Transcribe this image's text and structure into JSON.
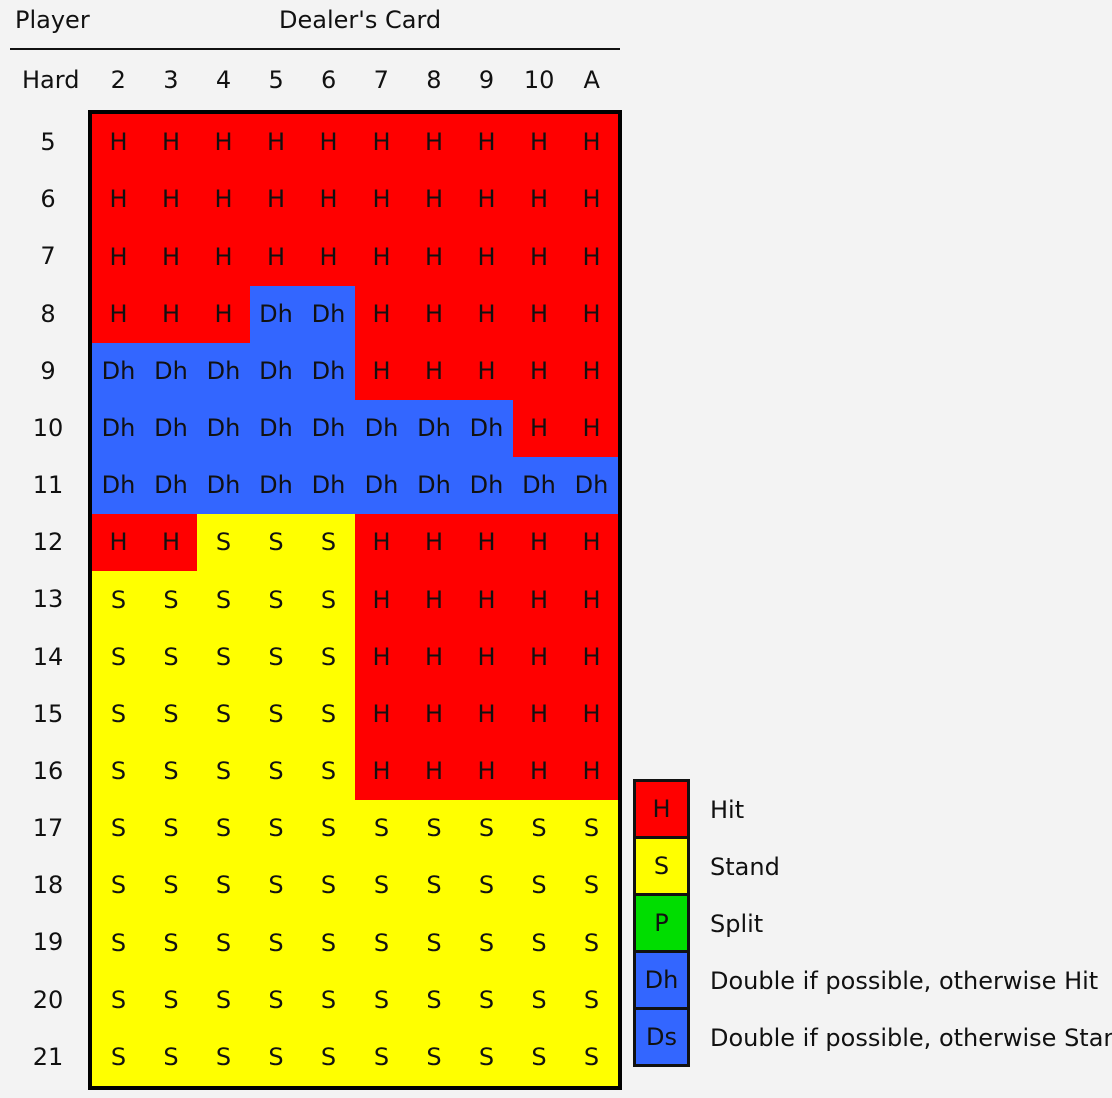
{
  "header": {
    "player_label": "Player",
    "dealer_label": "Dealer's Card",
    "hand_type_label": "Hard"
  },
  "dealer_cards": [
    "2",
    "3",
    "4",
    "5",
    "6",
    "7",
    "8",
    "9",
    "10",
    "A"
  ],
  "player_totals": [
    "5",
    "6",
    "7",
    "8",
    "9",
    "10",
    "11",
    "12",
    "13",
    "14",
    "15",
    "16",
    "17",
    "18",
    "19",
    "20",
    "21"
  ],
  "actions": [
    [
      "H",
      "H",
      "H",
      "H",
      "H",
      "H",
      "H",
      "H",
      "H",
      "H"
    ],
    [
      "H",
      "H",
      "H",
      "H",
      "H",
      "H",
      "H",
      "H",
      "H",
      "H"
    ],
    [
      "H",
      "H",
      "H",
      "H",
      "H",
      "H",
      "H",
      "H",
      "H",
      "H"
    ],
    [
      "H",
      "H",
      "H",
      "Dh",
      "Dh",
      "H",
      "H",
      "H",
      "H",
      "H"
    ],
    [
      "Dh",
      "Dh",
      "Dh",
      "Dh",
      "Dh",
      "H",
      "H",
      "H",
      "H",
      "H"
    ],
    [
      "Dh",
      "Dh",
      "Dh",
      "Dh",
      "Dh",
      "Dh",
      "Dh",
      "Dh",
      "H",
      "H"
    ],
    [
      "Dh",
      "Dh",
      "Dh",
      "Dh",
      "Dh",
      "Dh",
      "Dh",
      "Dh",
      "Dh",
      "Dh"
    ],
    [
      "H",
      "H",
      "S",
      "S",
      "S",
      "H",
      "H",
      "H",
      "H",
      "H"
    ],
    [
      "S",
      "S",
      "S",
      "S",
      "S",
      "H",
      "H",
      "H",
      "H",
      "H"
    ],
    [
      "S",
      "S",
      "S",
      "S",
      "S",
      "H",
      "H",
      "H",
      "H",
      "H"
    ],
    [
      "S",
      "S",
      "S",
      "S",
      "S",
      "H",
      "H",
      "H",
      "H",
      "H"
    ],
    [
      "S",
      "S",
      "S",
      "S",
      "S",
      "H",
      "H",
      "H",
      "H",
      "H"
    ],
    [
      "S",
      "S",
      "S",
      "S",
      "S",
      "S",
      "S",
      "S",
      "S",
      "S"
    ],
    [
      "S",
      "S",
      "S",
      "S",
      "S",
      "S",
      "S",
      "S",
      "S",
      "S"
    ],
    [
      "S",
      "S",
      "S",
      "S",
      "S",
      "S",
      "S",
      "S",
      "S",
      "S"
    ],
    [
      "S",
      "S",
      "S",
      "S",
      "S",
      "S",
      "S",
      "S",
      "S",
      "S"
    ],
    [
      "S",
      "S",
      "S",
      "S",
      "S",
      "S",
      "S",
      "S",
      "S",
      "S"
    ]
  ],
  "colors": {
    "H": "#ff0000",
    "S": "#ffff00",
    "P": "#00dd00",
    "Dh": "#3366ff",
    "Ds": "#3366ff"
  },
  "legend": [
    {
      "code": "H",
      "label": "Hit"
    },
    {
      "code": "S",
      "label": "Stand"
    },
    {
      "code": "P",
      "label": "Split"
    },
    {
      "code": "Dh",
      "label": "Double if possible, otherwise Hit"
    },
    {
      "code": "Ds",
      "label": "Double if possible, otherwise Stand"
    }
  ]
}
